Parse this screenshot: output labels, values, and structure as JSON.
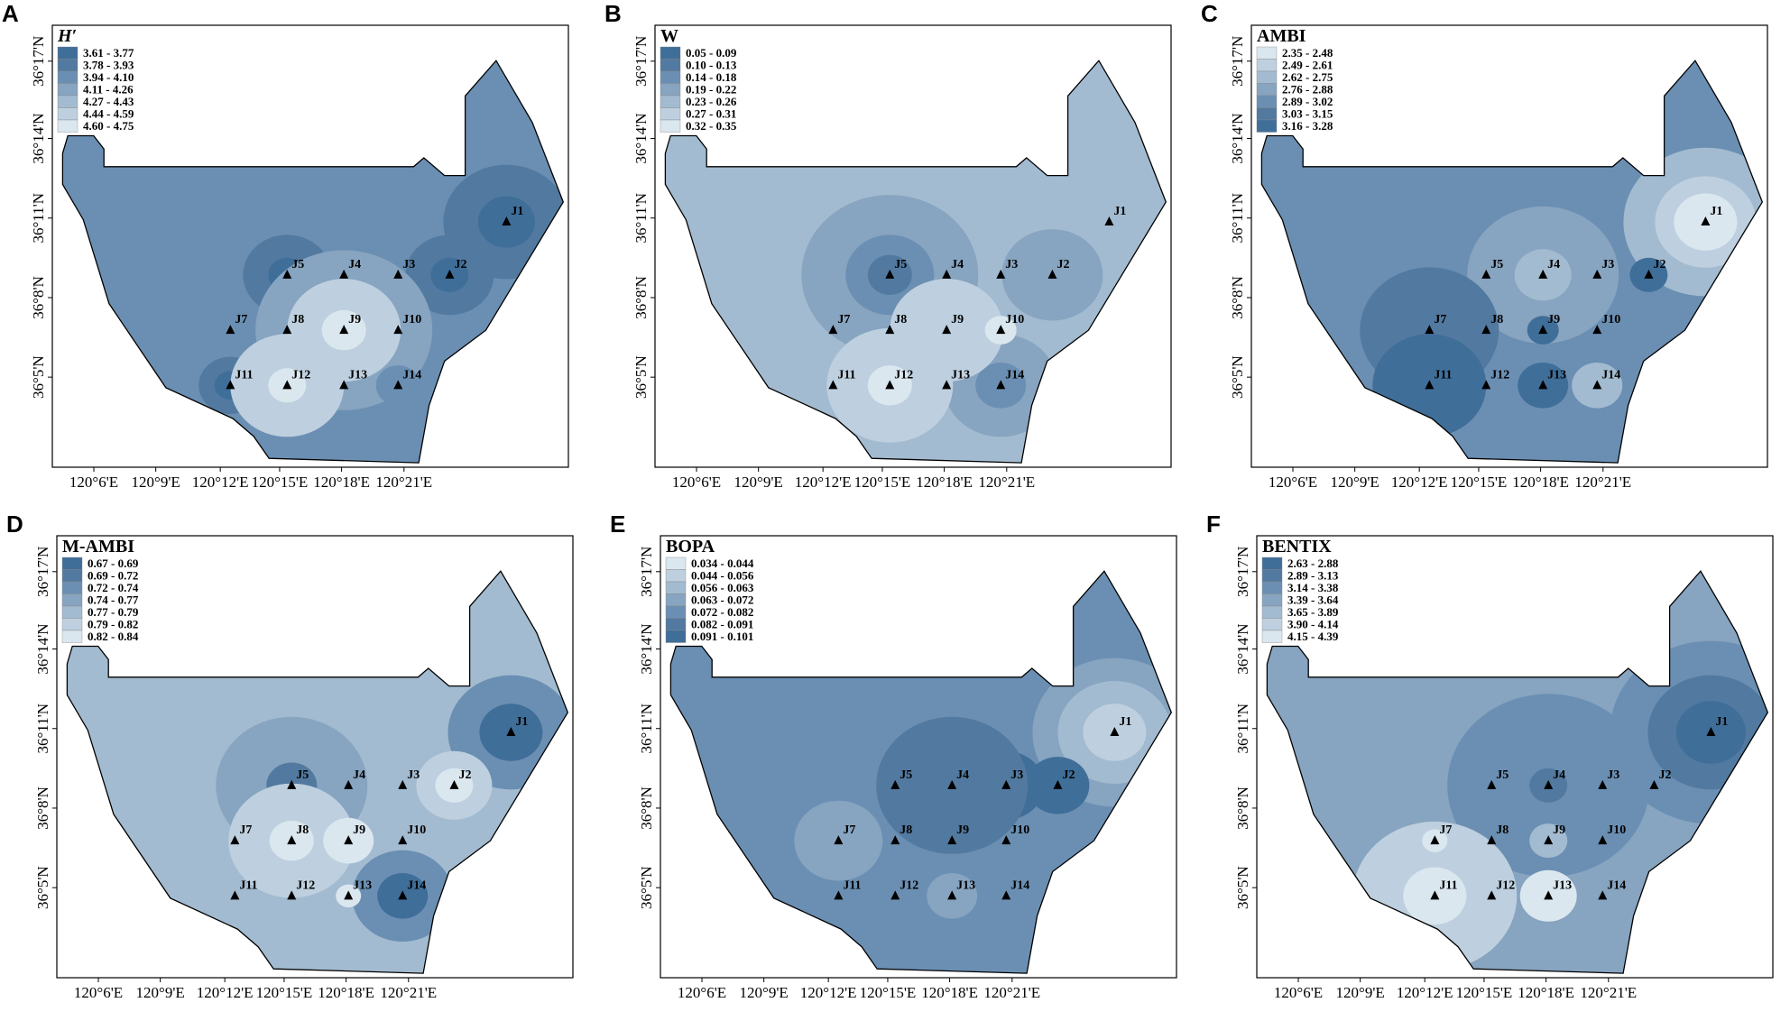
{
  "figure": {
    "x_ticks": [
      "120°6'E",
      "120°9'E",
      "120°12'E",
      "120°15'E",
      "120°18'E",
      "120°21'E"
    ],
    "y_ticks": [
      "36°17'N",
      "36°14'N",
      "36°11'N",
      "36°8'N",
      "36°5'N"
    ],
    "stations": [
      {
        "id": "J1"
      },
      {
        "id": "J2"
      },
      {
        "id": "J3"
      },
      {
        "id": "J4"
      },
      {
        "id": "J5"
      },
      {
        "id": "J7"
      },
      {
        "id": "J8"
      },
      {
        "id": "J9"
      },
      {
        "id": "J10"
      },
      {
        "id": "J11"
      },
      {
        "id": "J12"
      },
      {
        "id": "J13"
      },
      {
        "id": "J14"
      }
    ],
    "palette": [
      "#3f6e99",
      "#52799f",
      "#6b8fb3",
      "#87a4c0",
      "#a3bbd0",
      "#bed0df",
      "#dbe7ef"
    ],
    "panels": [
      {
        "letter": "A",
        "index": "H′",
        "italic": true,
        "reverse": false,
        "legend": [
          "3.61 - 3.77",
          "3.78 - 3.93",
          "3.94 - 4.10",
          "4.11 - 4.26",
          "4.27 - 4.43",
          "4.44 - 4.59",
          "4.60 - 4.75"
        ],
        "base_class": 2,
        "blobs": [
          {
            "st": "J1",
            "r": 1.0,
            "cls": 1
          },
          {
            "st": "J1",
            "r": 0.45,
            "cls": 0
          },
          {
            "st": "J2",
            "r": 0.7,
            "cls": 1
          },
          {
            "st": "J2",
            "r": 0.3,
            "cls": 0
          },
          {
            "st": "J5",
            "r": 0.7,
            "cls": 1
          },
          {
            "st": "J5",
            "r": 0.3,
            "cls": 0
          },
          {
            "st": "J11",
            "r": 0.5,
            "cls": 1
          },
          {
            "st": "J11",
            "r": 0.25,
            "cls": 0
          },
          {
            "st": "J9",
            "r": 1.4,
            "cls": 3
          },
          {
            "st": "J12",
            "r": 0.9,
            "cls": 5
          },
          {
            "st": "J9",
            "r": 0.9,
            "cls": 5
          },
          {
            "st": "J9",
            "r": 0.35,
            "cls": 6
          },
          {
            "st": "J12",
            "r": 0.3,
            "cls": 6
          },
          {
            "st": "J14",
            "r": 0.35,
            "cls": 2
          }
        ]
      },
      {
        "letter": "B",
        "index": "W",
        "italic": false,
        "reverse": false,
        "legend": [
          "0.05 - 0.09",
          "0.10 - 0.13",
          "0.14 - 0.18",
          "0.19 - 0.22",
          "0.23 - 0.26",
          "0.27 - 0.31",
          "0.32 - 0.35"
        ],
        "base_class": 4,
        "blobs": [
          {
            "st": "J5",
            "r": 1.4,
            "cls": 3
          },
          {
            "st": "J5",
            "r": 0.7,
            "cls": 2
          },
          {
            "st": "J5",
            "r": 0.35,
            "cls": 1
          },
          {
            "st": "J2",
            "r": 0.8,
            "cls": 3
          },
          {
            "st": "J14",
            "r": 0.9,
            "cls": 3
          },
          {
            "st": "J14",
            "r": 0.4,
            "cls": 2
          },
          {
            "st": "J12",
            "r": 1.0,
            "cls": 5
          },
          {
            "st": "J9",
            "r": 0.9,
            "cls": 5
          },
          {
            "st": "J10",
            "r": 0.25,
            "cls": 6
          },
          {
            "st": "J12",
            "r": 0.35,
            "cls": 6
          }
        ]
      },
      {
        "letter": "C",
        "index": "AMBI",
        "italic": false,
        "reverse": true,
        "legend": [
          "2.35 - 2.48",
          "2.49 - 2.61",
          "2.62 - 2.75",
          "2.76 - 2.88",
          "2.89 - 3.02",
          "3.03 - 3.15",
          "3.16 - 3.28"
        ],
        "base_class": 4,
        "blobs": [
          {
            "st": "J1",
            "r": 1.3,
            "cls": 2
          },
          {
            "st": "J1",
            "r": 0.8,
            "cls": 1
          },
          {
            "st": "J1",
            "r": 0.5,
            "cls": 0
          },
          {
            "st": "J4",
            "r": 1.2,
            "cls": 3
          },
          {
            "st": "J4",
            "r": 0.45,
            "cls": 2
          },
          {
            "st": "J7",
            "r": 1.1,
            "cls": 5
          },
          {
            "st": "J11",
            "r": 0.9,
            "cls": 6
          },
          {
            "st": "J13",
            "r": 0.4,
            "cls": 6
          },
          {
            "st": "J9",
            "r": 0.25,
            "cls": 6
          },
          {
            "st": "J2",
            "r": 0.3,
            "cls": 6
          },
          {
            "st": "J14",
            "r": 0.4,
            "cls": 2
          }
        ]
      },
      {
        "letter": "D",
        "index": "M-AMBI",
        "italic": false,
        "reverse": false,
        "legend": [
          "0.67 - 0.69",
          "0.69 - 0.72",
          "0.72 - 0.74",
          "0.74 - 0.77",
          "0.77 - 0.79",
          "0.79 - 0.82",
          "0.82 - 0.84"
        ],
        "base_class": 4,
        "blobs": [
          {
            "st": "J1",
            "r": 1.0,
            "cls": 2
          },
          {
            "st": "J1",
            "r": 0.5,
            "cls": 0
          },
          {
            "st": "J5",
            "r": 1.2,
            "cls": 3
          },
          {
            "st": "J5",
            "r": 0.4,
            "cls": 1
          },
          {
            "st": "J14",
            "r": 0.8,
            "cls": 2
          },
          {
            "st": "J14",
            "r": 0.4,
            "cls": 0
          },
          {
            "st": "J8",
            "r": 1.0,
            "cls": 5
          },
          {
            "st": "J9",
            "r": 0.4,
            "cls": 6
          },
          {
            "st": "J8",
            "r": 0.35,
            "cls": 6
          },
          {
            "st": "J2",
            "r": 0.6,
            "cls": 5
          },
          {
            "st": "J2",
            "r": 0.3,
            "cls": 6
          },
          {
            "st": "J13",
            "r": 0.2,
            "cls": 6
          }
        ]
      },
      {
        "letter": "E",
        "index": "BOPA",
        "italic": false,
        "reverse": true,
        "legend": [
          "0.034 - 0.044",
          "0.044 - 0.056",
          "0.056 - 0.063",
          "0.063 - 0.072",
          "0.072 - 0.082",
          "0.082 - 0.091",
          "0.091 - 0.101"
        ],
        "base_class": 4,
        "blobs": [
          {
            "st": "J1",
            "r": 1.3,
            "cls": 3
          },
          {
            "st": "J1",
            "r": 0.9,
            "cls": 2
          },
          {
            "st": "J1",
            "r": 0.5,
            "cls": 1
          },
          {
            "st": "J7",
            "r": 0.7,
            "cls": 3
          },
          {
            "st": "J13",
            "r": 0.4,
            "cls": 3
          },
          {
            "st": "J3",
            "r": 0.6,
            "cls": 6
          },
          {
            "st": "J2",
            "r": 0.5,
            "cls": 6
          },
          {
            "st": "J9",
            "r": 0.2,
            "cls": 6
          },
          {
            "st": "J4",
            "r": 1.2,
            "cls": 5
          }
        ]
      },
      {
        "letter": "F",
        "index": "BENTIX",
        "italic": false,
        "reverse": false,
        "legend": [
          "2.63 - 2.88",
          "2.89 - 3.13",
          "3.14 - 3.38",
          "3.39 - 3.64",
          "3.65 - 3.89",
          "3.90 - 4.14",
          "4.15 - 4.39"
        ],
        "base_class": 3,
        "blobs": [
          {
            "st": "J1",
            "r": 1.6,
            "cls": 2
          },
          {
            "st": "J1",
            "r": 1.0,
            "cls": 1
          },
          {
            "st": "J1",
            "r": 0.55,
            "cls": 0
          },
          {
            "st": "J4",
            "r": 1.6,
            "cls": 2
          },
          {
            "st": "J4",
            "r": 0.3,
            "cls": 1
          },
          {
            "st": "J11",
            "r": 1.3,
            "cls": 5
          },
          {
            "st": "J11",
            "r": 0.5,
            "cls": 6
          },
          {
            "st": "J13",
            "r": 0.45,
            "cls": 6
          },
          {
            "st": "J7",
            "r": 0.2,
            "cls": 6
          },
          {
            "st": "J9",
            "r": 0.3,
            "cls": 4
          }
        ]
      }
    ]
  }
}
